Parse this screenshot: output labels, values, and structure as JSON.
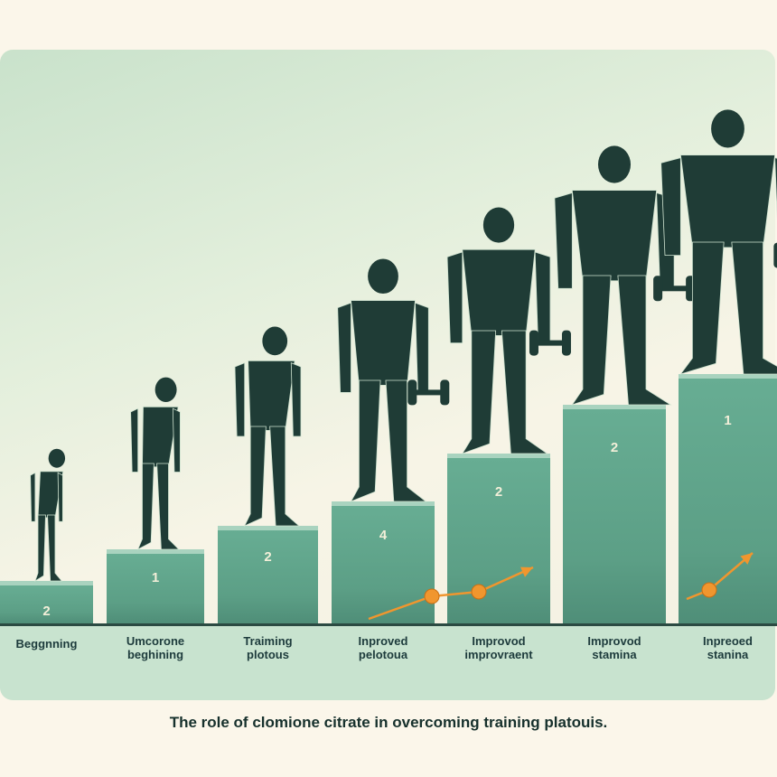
{
  "stages": [
    {
      "number": "2",
      "label": [
        "Beggnning"
      ]
    },
    {
      "number": "1",
      "label": [
        "Umcorone",
        "beghining"
      ]
    },
    {
      "number": "2",
      "label": [
        "Traiming",
        "plotous"
      ]
    },
    {
      "number": "4",
      "label": [
        "Inproved",
        "pelotoua"
      ]
    },
    {
      "number": "2",
      "label": [
        "Improvod",
        "improvraent"
      ]
    },
    {
      "number": "2",
      "label": [
        "Improvod",
        "stamina"
      ]
    },
    {
      "number": "1",
      "label": [
        "Inpreoed",
        "stanina"
      ]
    }
  ],
  "caption": "The role of clomione citrate in overcoming training platouis.",
  "colors": {
    "bar": "#5fa88e",
    "figure": "#1f3c36",
    "arrow": "#f0962e",
    "background": "#fbf6ea"
  }
}
